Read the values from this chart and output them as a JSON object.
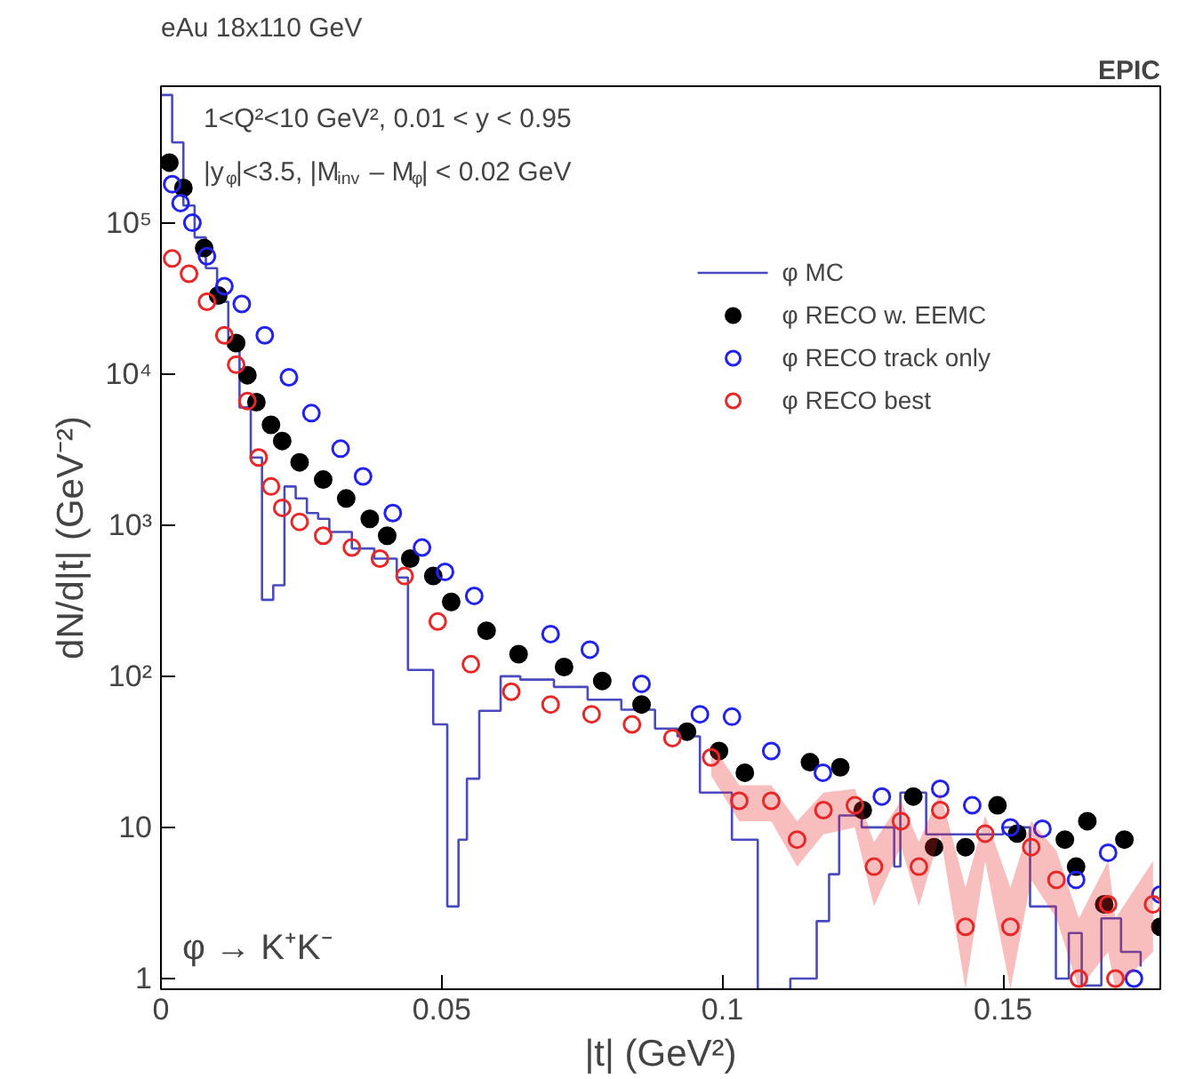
{
  "chart_data": {
    "type": "scatter",
    "title": "eAu 18x110 GeV",
    "xlabel": "|t| (GeV²)",
    "ylabel": "dN/d|t| (GeV⁻²)",
    "annotations": [
      "1<Q²<10 GeV², 0.01 < y < 0.95",
      "|y$_{φ}$|<3.5, |M$_{inv}$ – M$_{φ}$| < 0.02 GeV",
      "φ → K⁺K⁻",
      "EPIC"
    ],
    "log": "y",
    "xlim": [
      0,
      0.178
    ],
    "ylim": [
      0.85,
      800000
    ],
    "xticks": [
      0,
      0.05,
      0.1,
      0.15
    ],
    "yticks": [
      1,
      10,
      {
        "value": 100,
        "label": "10²"
      },
      {
        "value": 1000,
        "label": "10³"
      },
      {
        "value": 10000,
        "label": "10⁴"
      },
      {
        "value": 100000,
        "label": "10⁵"
      }
    ],
    "grid": false,
    "legend": "top right",
    "series": [
      {
        "name": "φ MC",
        "type": "step",
        "color": "#4a4ac0",
        "x": [
          0,
          0.002,
          0.004,
          0.006,
          0.008,
          0.01,
          0.012,
          0.014,
          0.016,
          0.018,
          0.02,
          0.022,
          0.024,
          0.026,
          0.028,
          0.03,
          0.034,
          0.038,
          0.042,
          0.044,
          0.0485,
          0.051,
          0.053,
          0.0545,
          0.0567,
          0.0605,
          0.064,
          0.07,
          0.076,
          0.082,
          0.088,
          0.092,
          0.096,
          0.1017,
          0.1063,
          0.1121,
          0.1168,
          0.119,
          0.1208,
          0.1248,
          0.1306,
          0.1317,
          0.1363,
          0.15,
          0.1548,
          0.1594,
          0.1617,
          0.164,
          0.1675,
          0.171,
          0.1745
        ],
        "values": [
          700000,
          340000,
          130000,
          80000,
          50000,
          30000,
          15000,
          6000,
          2800,
          320,
          400,
          1800,
          1500,
          1200,
          1100,
          900,
          700,
          600,
          450,
          110,
          48,
          3,
          8.3,
          21,
          59,
          100,
          95,
          85,
          70,
          60,
          45,
          40,
          17,
          8.3,
          0.85,
          1,
          2.4,
          4.9,
          12,
          10,
          5.5,
          17,
          9,
          10,
          3,
          1,
          2,
          0.9,
          2.5,
          1.5,
          1.2
        ]
      },
      {
        "name": "φ RECO w. EEMC",
        "marker": "circle",
        "color": "#000000",
        "x": [
          0.0015,
          0.004,
          0.0077,
          0.0102,
          0.0134,
          0.0154,
          0.017,
          0.0196,
          0.0216,
          0.0247,
          0.0289,
          0.033,
          0.0372,
          0.0403,
          0.0444,
          0.0485,
          0.0517,
          0.058,
          0.0637,
          0.0718,
          0.0786,
          0.0856,
          0.0937,
          0.0994,
          0.104,
          0.1156,
          0.121,
          0.125,
          0.134,
          0.1377,
          0.1433,
          0.149,
          0.1525,
          0.161,
          0.163,
          0.165,
          0.168,
          0.1716,
          0.178
        ],
        "values": [
          250000,
          170000,
          68000,
          33000,
          16000,
          9800,
          6500,
          4600,
          3600,
          2600,
          2000,
          1500,
          1100,
          850,
          600,
          460,
          310,
          200,
          140,
          115,
          93,
          65,
          43,
          32,
          23,
          27,
          25,
          13,
          16,
          7.4,
          7.4,
          14,
          9.1,
          8.3,
          5.5,
          11,
          3.1,
          8.3,
          2.2
        ]
      },
      {
        "name": "φ RECO track only",
        "color": "#2222ee",
        "x": [
          0.002,
          0.0035,
          0.0056,
          0.0082,
          0.0113,
          0.0144,
          0.0185,
          0.0228,
          0.0268,
          0.032,
          0.036,
          0.0413,
          0.0465,
          0.0506,
          0.0558,
          0.0694,
          0.0764,
          0.0856,
          0.096,
          0.1017,
          0.1087,
          0.1179,
          0.1284,
          0.1388,
          0.1445,
          0.1513,
          0.157,
          0.163,
          0.1687,
          0.1733,
          0.178
        ],
        "values": [
          180000,
          135000,
          100000,
          60000,
          38000,
          29000,
          18000,
          9500,
          5500,
          3200,
          2100,
          1200,
          710,
          490,
          340,
          190,
          150,
          89,
          56,
          54,
          32,
          23,
          16,
          18,
          14,
          10,
          9.8,
          4.5,
          6.8,
          1.0,
          3.6
        ]
      },
      {
        "name": "φ RECO best",
        "color": "#e82828",
        "x": [
          0.002,
          0.005,
          0.0082,
          0.0113,
          0.0134,
          0.0154,
          0.0174,
          0.0196,
          0.0216,
          0.0247,
          0.0289,
          0.034,
          0.039,
          0.0434,
          0.0493,
          0.0552,
          0.0624,
          0.0694,
          0.0767,
          0.0839,
          0.0911,
          0.098,
          0.103,
          0.1087,
          0.1133,
          0.118,
          0.1236,
          0.127,
          0.1318,
          0.135,
          0.1388,
          0.1433,
          0.1468,
          0.1513,
          0.155,
          0.1595,
          0.1635,
          0.1687,
          0.17,
          0.1767
        ],
        "values": [
          58000,
          46000,
          30000,
          18000,
          11500,
          6600,
          2800,
          1800,
          1300,
          1050,
          850,
          710,
          600,
          460,
          230,
          120,
          79,
          65,
          56,
          48,
          39,
          29,
          15,
          15,
          8.3,
          13,
          14,
          5.5,
          11,
          5.5,
          13,
          2.2,
          9.1,
          2.2,
          7.4,
          4.5,
          1.0,
          3.1,
          1.0,
          3.1
        ],
        "lower": [
          null,
          null,
          null,
          null,
          null,
          null,
          null,
          null,
          null,
          null,
          null,
          null,
          null,
          null,
          null,
          null,
          null,
          null,
          null,
          null,
          null,
          22,
          11,
          11,
          5.5,
          9,
          10,
          3,
          7.5,
          3,
          9,
          0.85,
          6,
          0.85,
          4.5,
          2.5,
          0.85,
          1.5,
          0.85,
          1.5
        ],
        "upper": [
          null,
          null,
          null,
          null,
          null,
          null,
          null,
          null,
          null,
          null,
          null,
          null,
          null,
          null,
          null,
          null,
          null,
          null,
          null,
          null,
          null,
          36,
          19,
          19,
          11,
          17,
          18,
          8,
          15,
          8,
          17,
          4,
          12,
          4,
          11,
          7,
          2.5,
          6,
          2.5,
          6
        ]
      }
    ]
  }
}
